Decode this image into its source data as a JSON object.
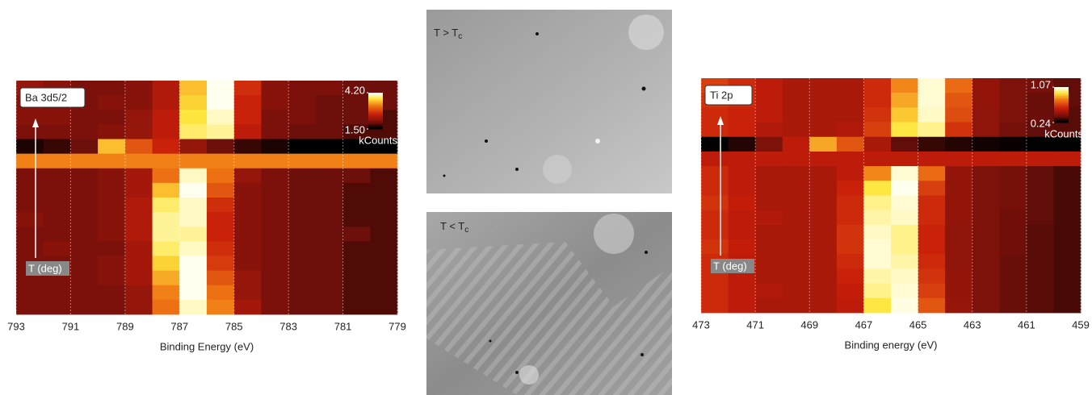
{
  "chart_data": [
    {
      "type": "heatmap",
      "title": "Ba 3d5/2",
      "xlabel": "Binding Energy (eV)",
      "annotation": "T (deg)",
      "colormap": "hot",
      "grid": true,
      "xlim": [
        793,
        779
      ],
      "xticks": [
        793,
        791,
        789,
        787,
        785,
        783,
        781,
        779
      ],
      "x": [
        792.5,
        791.5,
        790.5,
        789.5,
        788.5,
        787.5,
        786.5,
        785.5,
        784.5,
        783.5,
        782.5,
        781.5,
        780.5,
        779.5
      ],
      "zlim": [
        1.5,
        4.2
      ],
      "zticks": [
        {
          "value": 4.2,
          "label": "4.20"
        },
        {
          "value": 1.5,
          "label": "1.50"
        }
      ],
      "colorbar_label": "kCounts",
      "z": [
        [
          2.2,
          2.1,
          2.0,
          2.0,
          2.1,
          2.4,
          3.6,
          4.2,
          2.7,
          2.1,
          2.0,
          2.0,
          1.9,
          1.9
        ],
        [
          2.1,
          2.0,
          2.0,
          2.1,
          2.1,
          2.4,
          3.7,
          4.2,
          2.6,
          2.1,
          2.0,
          1.9,
          1.9,
          1.9
        ],
        [
          2.1,
          2.1,
          2.0,
          2.0,
          2.2,
          2.5,
          3.8,
          4.1,
          2.6,
          2.0,
          2.0,
          1.9,
          1.9,
          1.8
        ],
        [
          2.0,
          2.0,
          2.0,
          2.1,
          2.2,
          2.5,
          3.9,
          4.0,
          2.5,
          2.0,
          1.9,
          1.9,
          1.8,
          1.8
        ],
        [
          1.6,
          1.7,
          1.9,
          3.6,
          3.0,
          2.6,
          2.2,
          1.9,
          1.7,
          1.6,
          1.5,
          1.5,
          1.5,
          1.5
        ],
        [
          3.3,
          3.3,
          3.3,
          3.3,
          3.3,
          3.3,
          3.3,
          3.3,
          3.3,
          3.3,
          3.3,
          3.3,
          3.3,
          3.3
        ],
        [
          2.0,
          2.0,
          2.0,
          2.1,
          2.3,
          3.2,
          4.1,
          3.2,
          2.2,
          2.0,
          1.9,
          1.9,
          1.9,
          1.8
        ],
        [
          2.0,
          2.0,
          2.0,
          2.1,
          2.3,
          3.6,
          4.2,
          3.0,
          2.1,
          2.0,
          1.9,
          1.9,
          1.8,
          1.8
        ],
        [
          2.0,
          2.0,
          2.0,
          2.1,
          2.4,
          3.9,
          4.1,
          2.7,
          2.1,
          2.0,
          1.9,
          1.9,
          1.8,
          1.8
        ],
        [
          2.1,
          2.0,
          2.0,
          2.1,
          2.4,
          4.0,
          4.1,
          2.6,
          2.1,
          2.0,
          1.9,
          1.9,
          1.8,
          1.8
        ],
        [
          2.0,
          2.0,
          2.0,
          2.1,
          2.4,
          4.0,
          4.0,
          2.6,
          2.1,
          2.0,
          1.9,
          1.9,
          1.9,
          1.8
        ],
        [
          2.0,
          2.1,
          2.0,
          2.0,
          2.3,
          3.9,
          4.1,
          2.7,
          2.1,
          2.0,
          1.9,
          1.9,
          1.8,
          1.8
        ],
        [
          2.0,
          2.0,
          2.0,
          2.1,
          2.3,
          3.7,
          4.2,
          2.8,
          2.1,
          2.0,
          1.9,
          1.9,
          1.8,
          1.8
        ],
        [
          2.0,
          2.0,
          2.0,
          2.1,
          2.3,
          3.5,
          4.2,
          3.0,
          2.2,
          2.0,
          1.9,
          1.9,
          1.8,
          1.8
        ],
        [
          2.0,
          2.0,
          2.0,
          2.0,
          2.2,
          3.3,
          4.2,
          3.2,
          2.2,
          2.0,
          1.9,
          1.9,
          1.8,
          1.8
        ],
        [
          2.0,
          2.0,
          2.0,
          2.0,
          2.2,
          3.2,
          4.1,
          3.3,
          2.3,
          2.0,
          1.9,
          1.9,
          1.8,
          1.8
        ]
      ]
    },
    {
      "type": "heatmap",
      "title": "Ti 2p",
      "xlabel": "Binding energy (eV)",
      "annotation": "T (deg)",
      "colormap": "hot",
      "grid": true,
      "xlim": [
        473,
        459
      ],
      "xticks": [
        473,
        471,
        469,
        467,
        465,
        463,
        461,
        459
      ],
      "x": [
        472.5,
        471.5,
        470.5,
        469.5,
        468.5,
        467.5,
        466.5,
        465.5,
        464.5,
        463.5,
        462.5,
        461.5,
        460.5,
        459.5
      ],
      "zlim": [
        0.24,
        1.07
      ],
      "zticks": [
        1.07,
        0.24
      ],
      "colorbar_label": "kCounts",
      "z": [
        [
          0.65,
          0.6,
          0.55,
          0.5,
          0.5,
          0.5,
          0.6,
          0.8,
          1.05,
          0.75,
          0.45,
          0.4,
          0.38,
          0.35
        ],
        [
          0.62,
          0.6,
          0.55,
          0.5,
          0.5,
          0.5,
          0.6,
          0.85,
          1.05,
          0.7,
          0.45,
          0.4,
          0.36,
          0.35
        ],
        [
          0.6,
          0.58,
          0.55,
          0.5,
          0.5,
          0.5,
          0.62,
          0.9,
          1.04,
          0.68,
          0.44,
          0.4,
          0.36,
          0.34
        ],
        [
          0.6,
          0.58,
          0.52,
          0.5,
          0.5,
          0.52,
          0.65,
          0.95,
          1.0,
          0.62,
          0.44,
          0.38,
          0.35,
          0.34
        ],
        [
          0.24,
          0.28,
          0.4,
          0.55,
          0.85,
          0.7,
          0.5,
          0.35,
          0.3,
          0.28,
          0.26,
          0.25,
          0.24,
          0.24
        ],
        [
          0.55,
          0.55,
          0.55,
          0.55,
          0.55,
          0.55,
          0.55,
          0.55,
          0.55,
          0.55,
          0.55,
          0.55,
          0.55,
          0.55
        ],
        [
          0.6,
          0.55,
          0.5,
          0.5,
          0.5,
          0.55,
          0.8,
          1.05,
          0.75,
          0.45,
          0.4,
          0.38,
          0.35,
          0.32
        ],
        [
          0.6,
          0.55,
          0.5,
          0.5,
          0.5,
          0.58,
          0.95,
          1.07,
          0.65,
          0.45,
          0.4,
          0.38,
          0.35,
          0.32
        ],
        [
          0.62,
          0.56,
          0.5,
          0.5,
          0.5,
          0.6,
          1.0,
          1.05,
          0.6,
          0.45,
          0.4,
          0.38,
          0.35,
          0.32
        ],
        [
          0.6,
          0.55,
          0.52,
          0.5,
          0.5,
          0.6,
          1.02,
          1.04,
          0.6,
          0.45,
          0.4,
          0.37,
          0.35,
          0.32
        ],
        [
          0.6,
          0.55,
          0.5,
          0.5,
          0.5,
          0.62,
          1.04,
          1.0,
          0.58,
          0.44,
          0.4,
          0.37,
          0.34,
          0.32
        ],
        [
          0.62,
          0.56,
          0.5,
          0.5,
          0.5,
          0.62,
          1.05,
          1.0,
          0.58,
          0.44,
          0.4,
          0.37,
          0.34,
          0.32
        ],
        [
          0.6,
          0.55,
          0.5,
          0.5,
          0.5,
          0.6,
          1.05,
          1.02,
          0.6,
          0.44,
          0.4,
          0.36,
          0.34,
          0.32
        ],
        [
          0.6,
          0.55,
          0.5,
          0.5,
          0.5,
          0.58,
          1.02,
          1.04,
          0.62,
          0.45,
          0.4,
          0.36,
          0.34,
          0.32
        ],
        [
          0.6,
          0.55,
          0.52,
          0.5,
          0.5,
          0.56,
          1.0,
          1.05,
          0.65,
          0.45,
          0.4,
          0.36,
          0.34,
          0.32
        ],
        [
          0.6,
          0.55,
          0.5,
          0.5,
          0.5,
          0.55,
          0.95,
          1.06,
          0.7,
          0.46,
          0.4,
          0.36,
          0.34,
          0.32
        ]
      ]
    }
  ],
  "images": [
    {
      "label": "T > T",
      "subscript": "c"
    },
    {
      "label": "T < T",
      "subscript": "c"
    }
  ]
}
